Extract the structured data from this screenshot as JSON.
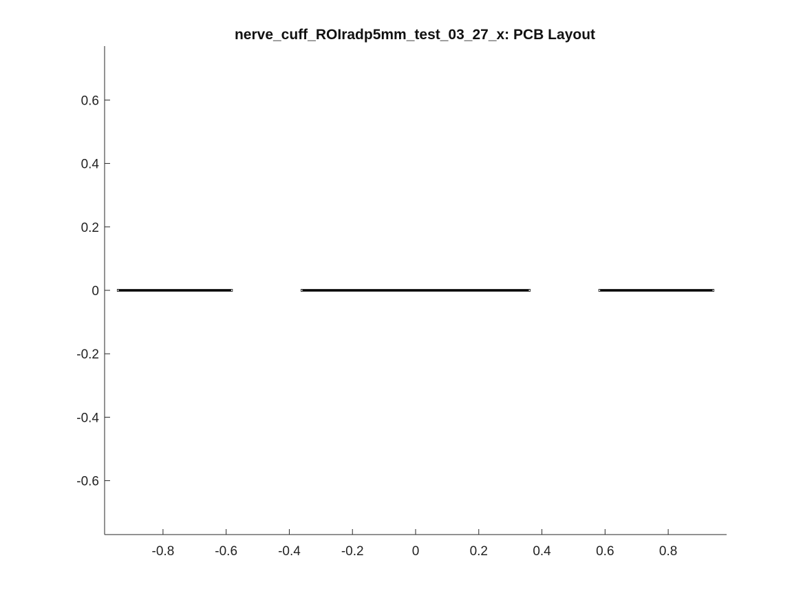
{
  "chart_data": {
    "type": "line",
    "title": "nerve_cuff_ROIradp5mm_test_03_27_x: PCB Layout",
    "xlabel": "",
    "ylabel": "",
    "xlim": [
      -0.985,
      0.985
    ],
    "ylim": [
      -0.77,
      0.77
    ],
    "xticks": [
      -0.8,
      -0.6,
      -0.4,
      -0.2,
      0,
      0.2,
      0.4,
      0.6,
      0.8
    ],
    "xtick_labels": [
      "-0.8",
      "-0.6",
      "-0.4",
      "-0.2",
      "0",
      "0.2",
      "0.4",
      "0.6",
      "0.8"
    ],
    "yticks": [
      -0.6,
      -0.4,
      -0.2,
      0,
      0.2,
      0.4,
      0.6
    ],
    "ytick_labels": [
      "-0.6",
      "-0.4",
      "-0.2",
      "0",
      "0.2",
      "0.4",
      "0.6"
    ],
    "grid": false,
    "box": false,
    "color": "#000000",
    "segments": [
      {
        "x": [
          -0.945,
          -0.58
        ],
        "y": [
          0,
          0
        ]
      },
      {
        "x": [
          -0.363,
          0.363
        ],
        "y": [
          0,
          0
        ]
      },
      {
        "x": [
          0.58,
          0.945
        ],
        "y": [
          0,
          0
        ]
      }
    ]
  }
}
